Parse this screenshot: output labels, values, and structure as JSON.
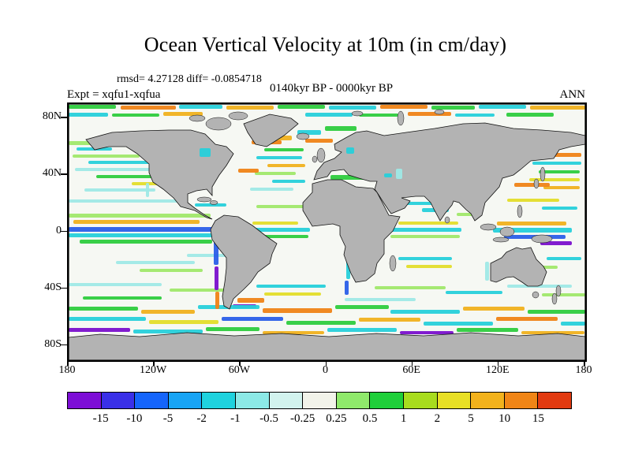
{
  "title": "Ocean Vertical Velocity at 10m (in cm/day)",
  "header": {
    "stats": "rmsd= 4.27128 diff= -0.0854718",
    "period": "0140kyr BP - 0000kyr BP",
    "expt": "Expt = xqfu1-xqfua",
    "season": "ANN"
  },
  "axes": {
    "lat_ticks": [
      "80N",
      "40N",
      "0",
      "40S",
      "80S"
    ],
    "lon_ticks": [
      "180",
      "120W",
      "60W",
      "0",
      "60E",
      "120E",
      "180"
    ]
  },
  "colorbar": {
    "labels": [
      "-15",
      "-10",
      "-5",
      "-2",
      "-1",
      "-0.5",
      "-0.25",
      "0.25",
      "0.5",
      "1",
      "2",
      "5",
      "10",
      "15"
    ],
    "colors": [
      "#7d0ed6",
      "#3a30e8",
      "#1565fb",
      "#18a4f5",
      "#1fd2de",
      "#8ce9e6",
      "#d2f3ee",
      "#f2f3ea",
      "#8fe96b",
      "#1fcf3a",
      "#a8dc1e",
      "#e8df25",
      "#f2b21c",
      "#f08516",
      "#e23a10"
    ]
  },
  "map": {
    "land_color": "#b3b3b3",
    "ocean_color": "#f6f8f3",
    "coast_color": "#111111"
  },
  "chart_data": {
    "type": "heatmap",
    "title": "Ocean Vertical Velocity at 10m (in cm/day)",
    "variable": "ocean vertical velocity at 10m depth, difference field",
    "units": "cm/day",
    "comparison": "0140kyr BP - 0000kyr BP",
    "experiment": "xqfu1-xqfua",
    "season": "ANN",
    "rmsd": 4.27128,
    "diff": -0.0854718,
    "contour_levels": [
      -15,
      -10,
      -5,
      -2,
      -1,
      -0.5,
      -0.25,
      0.25,
      0.5,
      1,
      2,
      5,
      10,
      15
    ],
    "palette": [
      "#7d0ed6",
      "#3a30e8",
      "#1565fb",
      "#18a4f5",
      "#1fd2de",
      "#8ce9e6",
      "#d2f3ee",
      "#f2f3ea",
      "#8fe96b",
      "#1fcf3a",
      "#a8dc1e",
      "#e8df25",
      "#f2b21c",
      "#f08516",
      "#e23a10"
    ],
    "x_axis": {
      "label": "longitude",
      "ticks": [
        "180",
        "120W",
        "60W",
        "0",
        "60E",
        "120E",
        "180"
      ],
      "range_deg": [
        -180,
        180
      ]
    },
    "y_axis": {
      "label": "latitude",
      "ticks": [
        "80N",
        "40N",
        "0",
        "40S",
        "80S"
      ],
      "range_deg": [
        -90,
        90
      ]
    },
    "projection": "global equirectangular map, land masked gray"
  }
}
